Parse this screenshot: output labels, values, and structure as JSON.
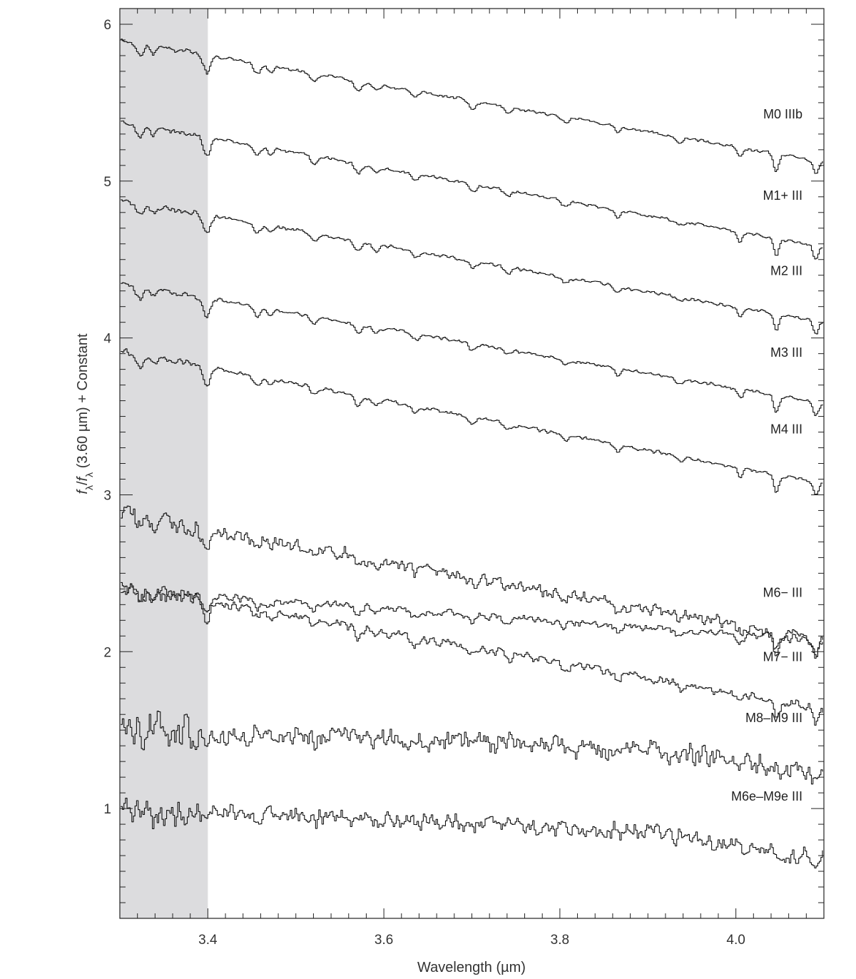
{
  "chart_data": {
    "type": "line",
    "xlabel": "Wavelength (µm)",
    "ylabel": {
      "parts": [
        {
          "t": "f",
          "style": "italic"
        },
        {
          "t": "λ",
          "sub": true
        },
        {
          "t": "/"
        },
        {
          "t": "f",
          "style": "italic"
        },
        {
          "t": "λ",
          "sub": true
        },
        {
          "t": " (3.60 µm) + Constant"
        }
      ]
    },
    "xlim": [
      3.3,
      4.1
    ],
    "ylim": [
      0.3,
      6.1
    ],
    "x_ticks": [
      3.4,
      3.6,
      3.8,
      4.0
    ],
    "x_tick_labels": [
      "3.4",
      "3.6",
      "3.8",
      "4.0"
    ],
    "y_ticks": [
      1,
      2,
      3,
      4,
      5,
      6
    ],
    "y_tick_labels": [
      "1",
      "2",
      "3",
      "4",
      "5",
      "6"
    ],
    "shaded_region": {
      "x": [
        3.3,
        3.4
      ],
      "color": "#dcdcde"
    },
    "grid": false,
    "line_color": "#111111",
    "series": [
      {
        "name": "M0 IIIb",
        "start": 5.9,
        "end": 5.12,
        "noise": 0.012,
        "pattern": "warm",
        "label_y": 5.4
      },
      {
        "name": "M1+ III",
        "start": 5.38,
        "end": 4.58,
        "noise": 0.012,
        "pattern": "warm",
        "label_y": 4.88
      },
      {
        "name": "M2 III",
        "start": 4.88,
        "end": 4.1,
        "noise": 0.013,
        "pattern": "warm",
        "label_y": 4.4
      },
      {
        "name": "M3 III",
        "start": 4.35,
        "end": 3.58,
        "noise": 0.013,
        "pattern": "warm",
        "label_y": 3.88
      },
      {
        "name": "M4 III",
        "start": 3.92,
        "end": 3.07,
        "noise": 0.014,
        "pattern": "warm",
        "label_y": 3.39
      },
      {
        "name": "",
        "start": 2.88,
        "end": 2.07,
        "noise": 0.05,
        "pattern": "cool"
      },
      {
        "name": "M6− III",
        "start": 2.4,
        "end": 2.07,
        "noise": 0.03,
        "pattern": "cool",
        "label_y": 2.35
      },
      {
        "name": "M7− III",
        "start": 2.42,
        "end": 1.63,
        "noise": 0.035,
        "pattern": "cool",
        "label_y": 1.94
      },
      {
        "name": "M8–M9 III",
        "start": 1.5,
        "end": 1.2,
        "noise": 0.09,
        "pattern": "mira",
        "label_y": 1.55
      },
      {
        "name": "M6e–M9e III",
        "start": 1.0,
        "end": 0.65,
        "noise": 0.07,
        "pattern": "mira",
        "label_y": 1.05
      }
    ]
  }
}
